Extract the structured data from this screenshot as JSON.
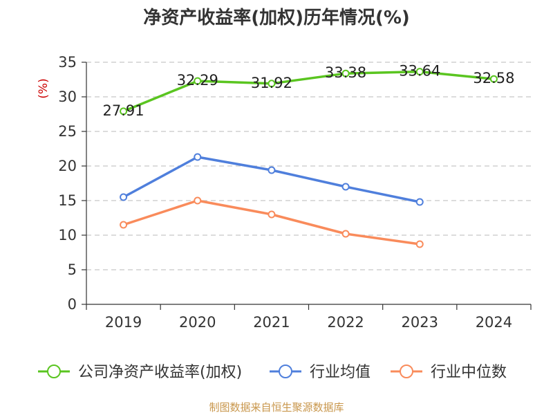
{
  "chart_data": {
    "type": "line",
    "title": "净资产收益率(加权)历年情况(%)",
    "ylabel": "(%)",
    "xlabel": "",
    "categories": [
      "2019",
      "2020",
      "2021",
      "2022",
      "2023",
      "2024"
    ],
    "ylim": [
      0,
      35
    ],
    "yticks": [
      0,
      5,
      10,
      15,
      20,
      25,
      30,
      35
    ],
    "grid": true,
    "legend_position": "bottom",
    "series": [
      {
        "name": "公司净资产收益率(加权)",
        "color": "#5ac520",
        "values": [
          27.91,
          32.29,
          31.92,
          33.38,
          33.64,
          32.58
        ],
        "labels": [
          "27.91",
          "32.29",
          "31.92",
          "33.38",
          "33.64",
          "32.58"
        ],
        "show_labels": true
      },
      {
        "name": "行业均值",
        "color": "#4f7fdc",
        "values": [
          15.5,
          21.3,
          19.4,
          17.0,
          14.8,
          null
        ],
        "show_labels": false
      },
      {
        "name": "行业中位数",
        "color": "#f98b5b",
        "values": [
          11.5,
          15.0,
          13.0,
          10.2,
          8.7,
          null
        ],
        "show_labels": false
      }
    ],
    "source": "制图数据来自恒生聚源数据库",
    "colors": {
      "title": "#333333",
      "ylabel": "#cc0000",
      "source": "#c8964b",
      "grid": "#c8c8c8",
      "axis": "#333333"
    }
  }
}
